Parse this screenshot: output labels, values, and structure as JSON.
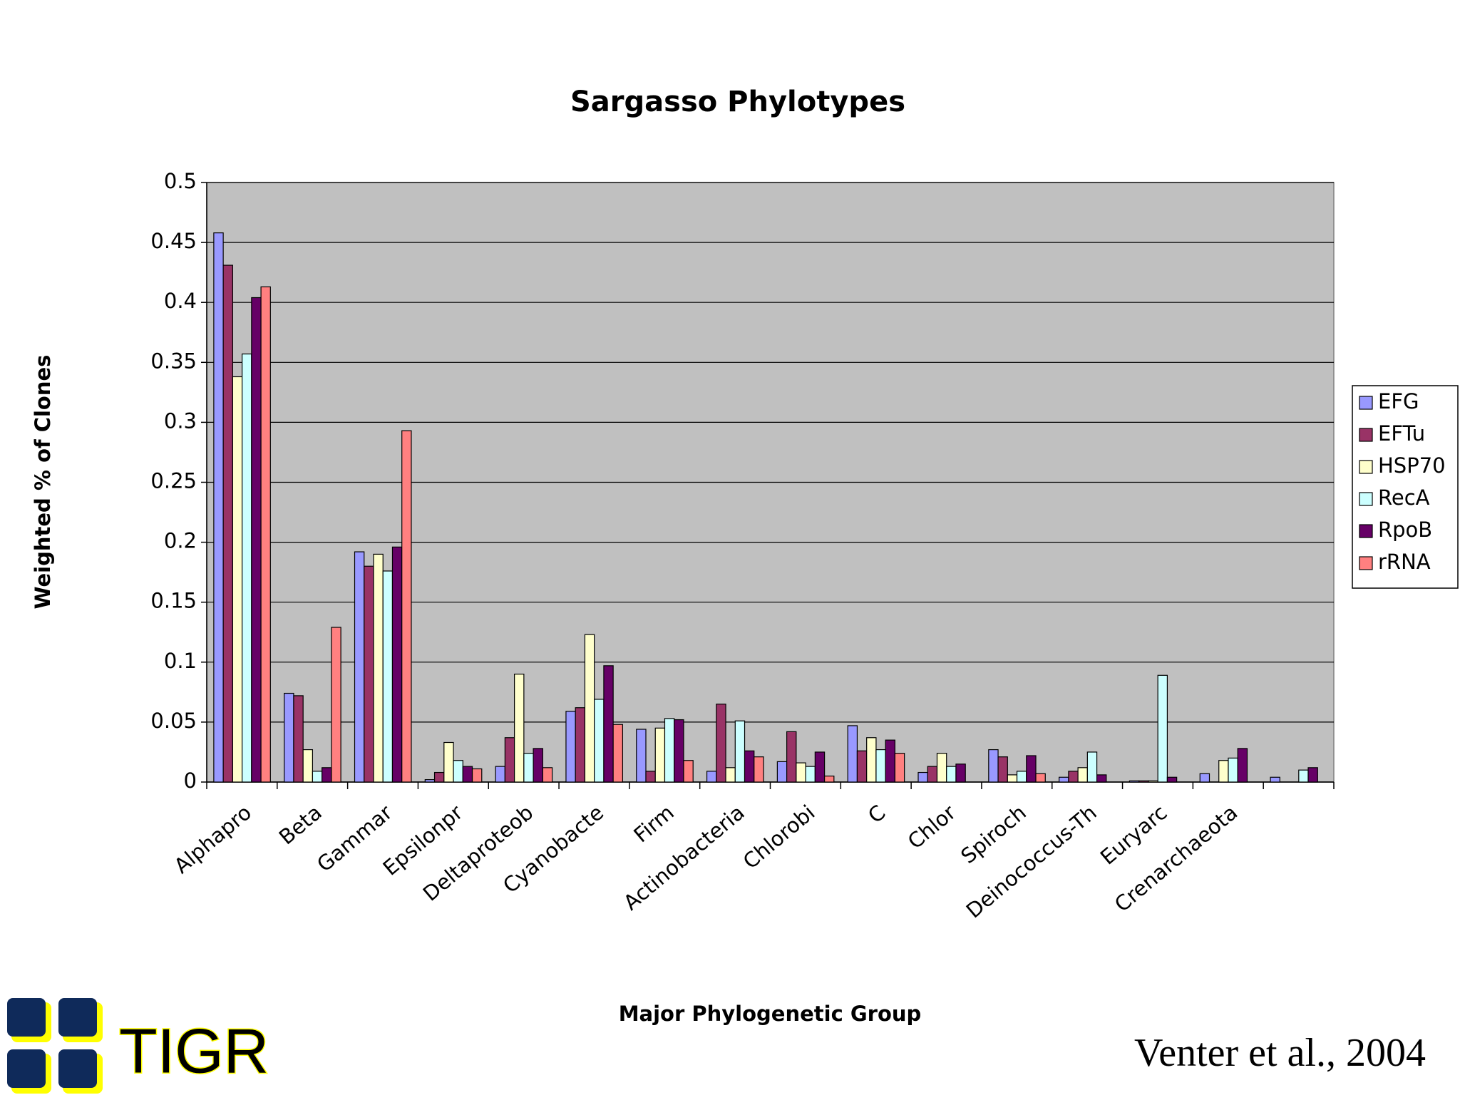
{
  "chart_data": {
    "type": "bar",
    "title": "Sargasso Phylotypes",
    "x_label": "Major Phylogenetic Group",
    "y_label": "Weighted % of Clones",
    "categories": [
      "Alphapro",
      "Beta",
      "Gammar",
      "Epsilonpr",
      "Deltaproteob",
      "Cyanobacte",
      "Firm",
      "Actinobacteria",
      "Chlorobi",
      "C",
      "Chlor",
      "Spiroch",
      "Deinococcus-Th",
      "Euryarc",
      "Crenarchaeota",
      null
    ],
    "series": [
      {
        "name": "EFG",
        "color": "#9999ff",
        "values": [
          0.458,
          0.074,
          0.192,
          0.002,
          0.013,
          0.059,
          0.044,
          0.009,
          0.017,
          0.047,
          0.008,
          0.027,
          0.004,
          0.001,
          0.007,
          0.004
        ]
      },
      {
        "name": "EFTu",
        "color": "#993366",
        "values": [
          0.431,
          0.072,
          0.18,
          0.008,
          0.037,
          0.062,
          0.009,
          0.065,
          0.042,
          0.026,
          0.013,
          0.021,
          0.009,
          0.001,
          0,
          0
        ]
      },
      {
        "name": "HSP70",
        "color": "#ffffcc",
        "values": [
          0.338,
          0.027,
          0.19,
          0.033,
          0.09,
          0.123,
          0.045,
          0.012,
          0.016,
          0.037,
          0.024,
          0.006,
          0.012,
          0.001,
          0.018,
          0
        ]
      },
      {
        "name": "RecA",
        "color": "#ccffff",
        "values": [
          0.357,
          0.009,
          0.176,
          0.018,
          0.024,
          0.069,
          0.053,
          0.051,
          0.013,
          0.027,
          0.013,
          0.009,
          0.025,
          0.089,
          0.02,
          0.01
        ]
      },
      {
        "name": "RpoB",
        "color": "#660066",
        "values": [
          0.404,
          0.012,
          0.196,
          0.013,
          0.028,
          0.097,
          0.052,
          0.026,
          0.025,
          0.035,
          0.015,
          0.022,
          0.006,
          0.004,
          0.028,
          0.012
        ]
      },
      {
        "name": "rRNA",
        "color": "#ff8080",
        "values": [
          0.413,
          0.129,
          0.293,
          0.011,
          0.012,
          0.048,
          0.018,
          0.021,
          0.005,
          0.024,
          0,
          0.007,
          0,
          0,
          0,
          0
        ]
      }
    ],
    "ylim": [
      0,
      0.5
    ],
    "yticks": [
      0,
      0.05,
      0.1,
      0.15,
      0.2,
      0.25,
      0.3,
      0.35,
      0.4,
      0.45,
      0.5
    ],
    "grid": true,
    "legend": "right",
    "plot_background": "#c0c0c0"
  },
  "logo": {
    "text": "TIGR"
  },
  "citation": "Venter et al., 2004"
}
